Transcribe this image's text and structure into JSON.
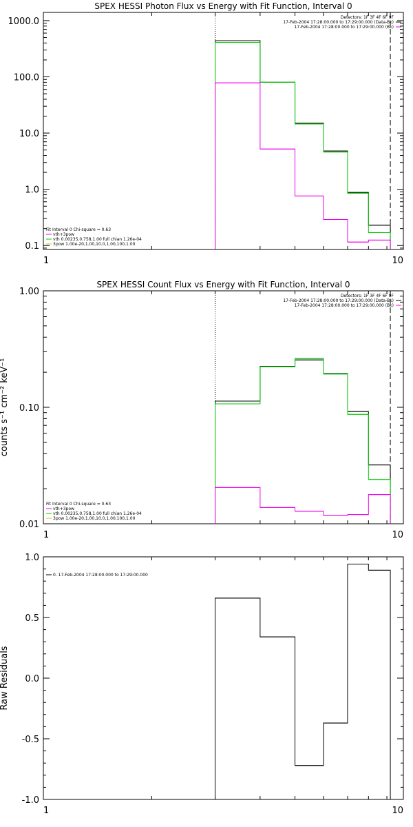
{
  "chart_data": [
    {
      "type": "line",
      "title": "SPEX HESSI Photon Flux vs Energy with Fit Function, Interval 0",
      "xlabel": "",
      "ylabel": "",
      "xscale": "log",
      "yscale": "log",
      "xlim": [
        1,
        10
      ],
      "ylim": [
        0.085,
        1400
      ],
      "x_ticks": [
        1,
        10
      ],
      "x_tick_labels": [
        "1",
        "10"
      ],
      "y_ticks": [
        0.1,
        1,
        10,
        100,
        1000
      ],
      "y_tick_labels": [
        "0.1",
        "1.0",
        "10.0",
        "100.0",
        "1000.0"
      ],
      "vlines": [
        {
          "x": 3.0,
          "style": "dotted"
        },
        {
          "x": 9.2,
          "style": "dashed"
        }
      ],
      "bin_edges": [
        3.0,
        4.0,
        5.0,
        6.0,
        7.0,
        8.0,
        8.5,
        9.2
      ],
      "series": [
        {
          "color": "#000000",
          "values": [
            440,
            80,
            15,
            4.8,
            0.88,
            0.23,
            0.23
          ]
        },
        {
          "color": "#00cc00",
          "values": [
            410,
            80,
            14.5,
            4.6,
            0.85,
            0.17,
            0.17
          ]
        },
        {
          "color": "#ee00ee",
          "values": [
            78,
            5.2,
            0.76,
            0.29,
            0.115,
            0.125,
            0.125
          ]
        }
      ],
      "legend_top": [
        {
          "text": "Detectors: 1F 3F 4F 6F 9F",
          "color": ""
        },
        {
          "text": "17-Feb-2004 17:28:00.000 to 17:29:00.000 (Data-Bk)",
          "color": "#000000"
        },
        {
          "text": "17-Feb-2004 17:28:00.000 to 17:29:00.000 (Bk)",
          "color": "#ee00ee"
        }
      ],
      "legend_bottom": [
        {
          "text": "Fit Interval 0   Chi-square = 0.63",
          "color": ""
        },
        {
          "text": "vth+3pow",
          "color": "#ee00ee"
        },
        {
          "text": "vth 0.00235,0.758,1.00  full chian 1.26e-04",
          "color": "#00cc00"
        },
        {
          "text": "3pow 1.00e-20,1.00,10.0,1.00,100,1.00",
          "color": "#e0c000"
        }
      ]
    },
    {
      "type": "line",
      "title": "SPEX HESSI Count Flux vs Energy with Fit Function, Interval 0",
      "xlabel": "",
      "ylabel": "counts s⁻¹ cm⁻² keV⁻¹",
      "xscale": "log",
      "yscale": "log",
      "xlim": [
        1,
        10
      ],
      "ylim": [
        0.01,
        1.0
      ],
      "x_ticks": [
        1,
        10
      ],
      "x_tick_labels": [
        "1",
        "10"
      ],
      "y_ticks": [
        0.01,
        0.1,
        1.0
      ],
      "y_tick_labels": [
        "0.01",
        "0.10",
        "1.00"
      ],
      "vlines": [
        {
          "x": 3.0,
          "style": "dotted"
        },
        {
          "x": 9.2,
          "style": "dashed"
        }
      ],
      "bin_edges": [
        3.0,
        4.0,
        5.0,
        6.0,
        7.0,
        8.0,
        8.5,
        9.2
      ],
      "series": [
        {
          "color": "#000000",
          "values": [
            0.113,
            0.225,
            0.255,
            0.195,
            0.092,
            0.032,
            0.032
          ]
        },
        {
          "color": "#00cc00",
          "values": [
            0.107,
            0.223,
            0.262,
            0.193,
            0.087,
            0.024,
            0.024
          ]
        },
        {
          "color": "#ee00ee",
          "values": [
            0.0205,
            0.0138,
            0.0128,
            0.0118,
            0.012,
            0.0178,
            0.0178
          ]
        }
      ],
      "legend_top": [
        {
          "text": "Detectors: 1F 3F 4F 6F 9F",
          "color": ""
        },
        {
          "text": "17-Feb-2004 17:28:00.000 to 17:29:00.000 (Data-Bk)",
          "color": "#000000"
        },
        {
          "text": "17-Feb-2004 17:28:00.000 to 17:29:00.000 (Bk)",
          "color": "#ee00ee"
        }
      ],
      "legend_bottom": [
        {
          "text": "Fit Interval 0   Chi-square = 0.63",
          "color": ""
        },
        {
          "text": "vth+3pow",
          "color": "#ee00ee"
        },
        {
          "text": "vth 0.00235,0.758,1.00  full chian 1.26e-04",
          "color": "#00cc00"
        },
        {
          "text": "3pow 1.00e-20,1.00,10.0,1.00,100,1.00",
          "color": "#e0c000"
        }
      ]
    },
    {
      "type": "line",
      "title": "",
      "xlabel": "",
      "ylabel": "Raw Residuals",
      "xscale": "log",
      "yscale": "linear",
      "xlim": [
        1,
        10
      ],
      "ylim": [
        -1.0,
        1.0
      ],
      "x_ticks": [
        1,
        10
      ],
      "x_tick_labels": [
        "1",
        "10"
      ],
      "y_ticks": [
        -1.0,
        -0.5,
        0.0,
        0.5,
        1.0
      ],
      "y_tick_labels": [
        "-1.0",
        "-0.5",
        "0.0",
        "0.5",
        "1.0"
      ],
      "vlines": [],
      "bin_edges": [
        3.0,
        4.0,
        5.0,
        6.0,
        7.0,
        8.0,
        8.5,
        9.2
      ],
      "series": [
        {
          "color": "#000000",
          "values": [
            0.66,
            0.34,
            -0.72,
            -0.37,
            0.94,
            0.89,
            0.89
          ]
        }
      ],
      "legend_top": [],
      "legend_bottom": [],
      "legend_upper_left": [
        {
          "text": "0. 17-Feb-2004 17:28:00.000 to 17:29:00.000",
          "color": "#000000"
        }
      ]
    }
  ]
}
